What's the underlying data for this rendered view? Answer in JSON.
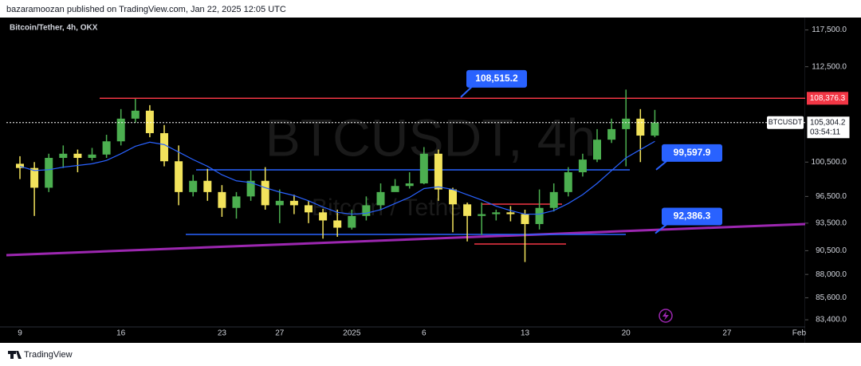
{
  "header": "bazaramoozan published on TradingView.com, Jan 22, 2025 12:05 UTC",
  "footer": "TradingView",
  "chart_data": {
    "type": "candlestick",
    "title": "Bitcoin/Tether, 4h, OKX",
    "watermark": [
      "BTCUSDT, 4h",
      "Bitcoin / Tether"
    ],
    "symbol": "BTCUSDT",
    "categories": [
      "9",
      null,
      null,
      null,
      null,
      null,
      null,
      "16",
      null,
      null,
      null,
      null,
      null,
      null,
      "23",
      null,
      null,
      null,
      "27",
      null,
      null,
      null,
      null,
      "2025",
      null,
      null,
      null,
      null,
      "6",
      null,
      null,
      null,
      null,
      null,
      null,
      "13",
      null,
      null,
      null,
      null,
      null,
      null,
      "20",
      null,
      null,
      null,
      null,
      null,
      null,
      "27",
      null,
      null,
      null,
      null,
      "Feb"
    ],
    "open": [
      100300,
      99800,
      97500,
      101000,
      101500,
      101000,
      101400,
      103000,
      105800,
      106800,
      104000,
      100600,
      97000,
      98300,
      97000,
      95200,
      96500,
      98300,
      95500,
      96000,
      95500,
      94700,
      93800,
      93000,
      94300,
      95500,
      97000,
      97700,
      98000,
      101500,
      97300,
      95600,
      94300,
      94500,
      94700,
      94500,
      93400,
      95200,
      97000,
      99300,
      100800,
      103200,
      104500,
      105800,
      103700,
      null,
      null,
      null,
      null,
      null,
      null,
      null,
      null,
      null,
      null
    ],
    "high": [
      101200,
      100500,
      101500,
      102500,
      102000,
      102200,
      103800,
      107000,
      108300,
      107500,
      105000,
      102500,
      99000,
      99700,
      97800,
      97000,
      99500,
      99900,
      97300,
      96700,
      96000,
      95100,
      95000,
      95000,
      96500,
      98000,
      98500,
      99300,
      102300,
      102000,
      97500,
      95800,
      95800,
      95000,
      95400,
      95000,
      97300,
      98000,
      99900,
      101500,
      104500,
      105800,
      109500,
      107000,
      106900,
      null,
      null,
      null,
      null,
      null,
      null,
      null,
      null,
      null,
      null
    ],
    "low": [
      98500,
      94300,
      97000,
      99800,
      99300,
      100700,
      101000,
      102500,
      105300,
      103500,
      100000,
      95500,
      96500,
      96000,
      94200,
      94000,
      96000,
      95000,
      93500,
      94500,
      93500,
      91800,
      92000,
      92800,
      93800,
      95000,
      97200,
      97400,
      97900,
      96000,
      92500,
      91500,
      92200,
      93800,
      93700,
      89300,
      92800,
      94800,
      96500,
      98800,
      100500,
      102800,
      100000,
      100500,
      103500,
      null,
      null,
      null,
      null,
      null,
      null,
      null,
      null,
      null,
      null
    ],
    "close": [
      99800,
      97500,
      101000,
      101500,
      101000,
      101400,
      103000,
      105800,
      106800,
      104000,
      100600,
      97000,
      98300,
      97000,
      95200,
      96500,
      98300,
      95500,
      96000,
      95500,
      94700,
      93800,
      93000,
      94300,
      95500,
      97000,
      97700,
      98000,
      101500,
      97300,
      95600,
      94300,
      94500,
      94700,
      94500,
      93400,
      95200,
      97000,
      99300,
      100800,
      103200,
      104500,
      105800,
      103700,
      105304.2,
      null,
      null,
      null,
      null,
      null,
      null,
      null,
      null,
      null,
      null
    ],
    "up_color": "#4caf50",
    "down_color": "#f2e35c",
    "ma": {
      "color": "#2962ff",
      "values": [
        100000,
        99500,
        99600,
        99900,
        100100,
        100300,
        100700,
        101500,
        102400,
        102900,
        102600,
        101700,
        100800,
        100000,
        99000,
        98300,
        98100,
        97500,
        97000,
        96600,
        96000,
        95300,
        94700,
        94500,
        94600,
        95000,
        95700,
        96400,
        97400,
        97600,
        97300,
        96700,
        96100,
        95400,
        94900,
        94500,
        94500,
        94900,
        95700,
        96700,
        98000,
        99500,
        101000,
        102000,
        103000,
        null,
        null,
        null,
        null,
        null,
        null,
        null,
        null,
        null,
        null
      ]
    },
    "log_scale": true,
    "ylim": [
      82700,
      118900
    ],
    "yticks": [
      {
        "value": 117500,
        "label": "117,500.0"
      },
      {
        "value": 112500,
        "label": "112,500.0"
      },
      {
        "value": 100500,
        "label": "100,500.0"
      },
      {
        "value": 96500,
        "label": "96,500.0"
      },
      {
        "value": 93500,
        "label": "93,500.0"
      },
      {
        "value": 90500,
        "label": "90,500.0"
      },
      {
        "value": 88000,
        "label": "88,000.0"
      },
      {
        "value": 85600,
        "label": "85,600.0"
      },
      {
        "value": 83400,
        "label": "83,400.0"
      }
    ],
    "levels": [
      {
        "value": 108376.3,
        "label": "108,376.3",
        "color": "#f23645"
      }
    ],
    "current_price": {
      "value": 105304.2,
      "label": "105,304.2",
      "countdown": "03:54:11"
    },
    "annotations": [
      {
        "value": 108515.2,
        "label": "108,515.2"
      },
      {
        "value": 99597.9,
        "label": "99,597.9"
      },
      {
        "value": 92386.3,
        "label": "92,386.3"
      }
    ]
  }
}
